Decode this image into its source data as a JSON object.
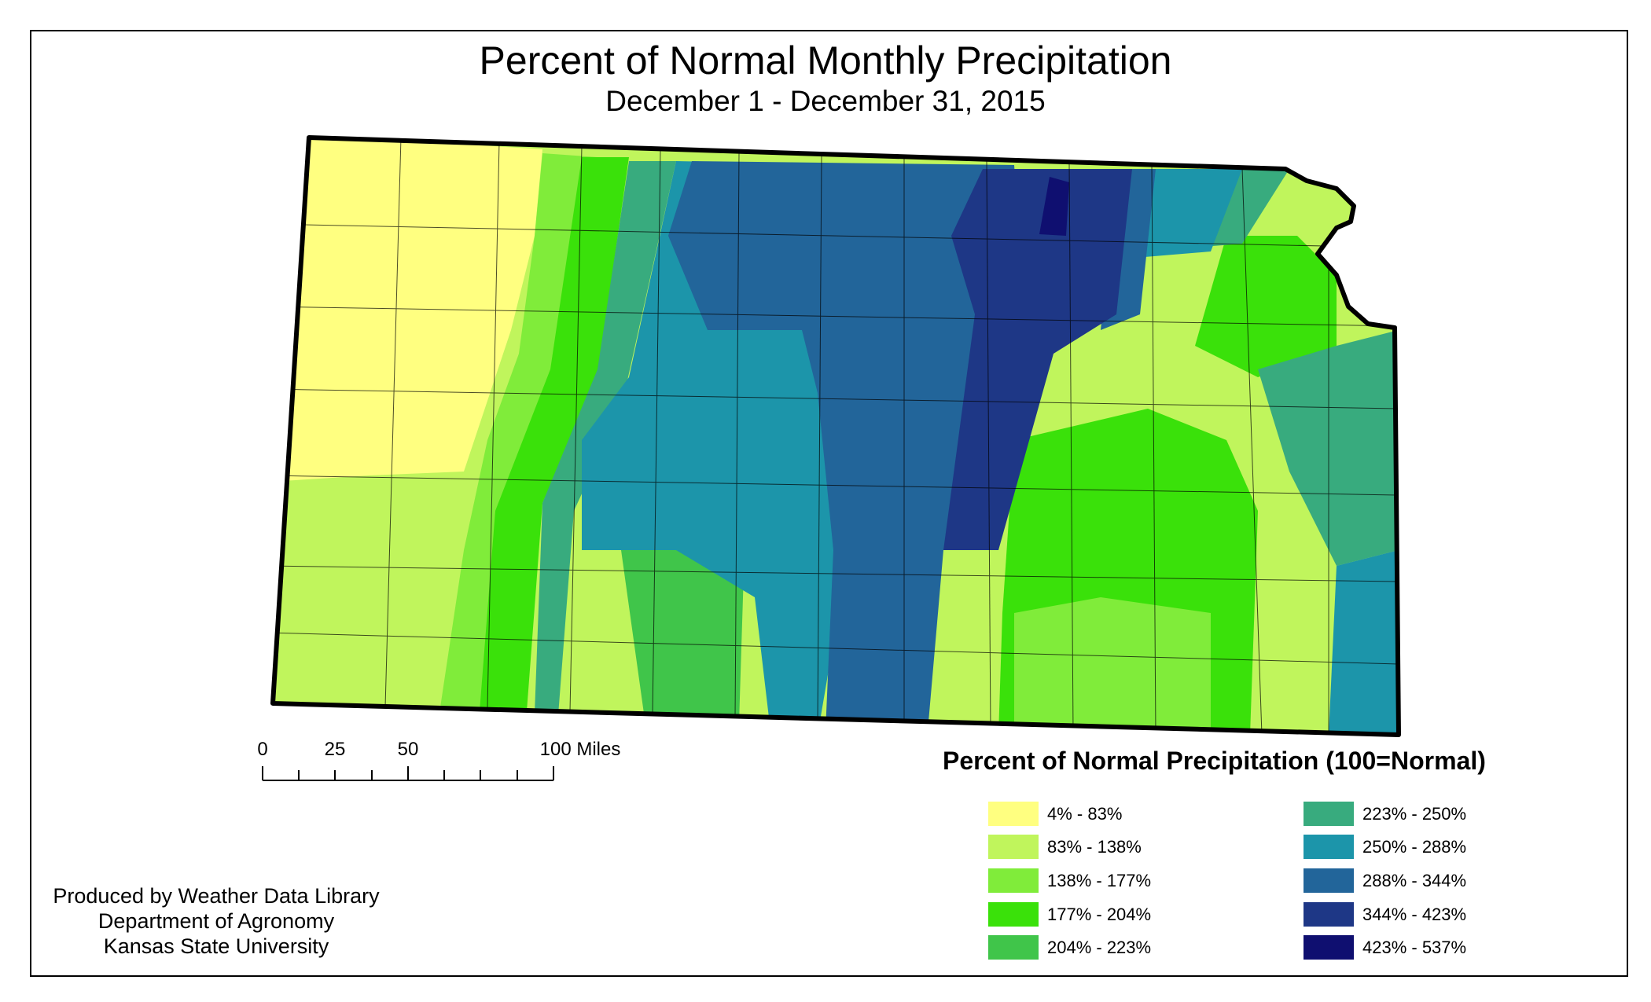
{
  "title": "Percent of Normal Monthly Precipitation",
  "subtitle": "December 1 - December 31, 2015",
  "legend": {
    "title": "Percent of Normal Precipitation (100=Normal)",
    "items": [
      {
        "label": "4% - 83%",
        "color": "#FFFF80"
      },
      {
        "label": "83% - 138%",
        "color": "#C0F55C"
      },
      {
        "label": "138% - 177%",
        "color": "#80EC3A"
      },
      {
        "label": "177% - 204%",
        "color": "#3AE10A"
      },
      {
        "label": "204% - 223%",
        "color": "#40C54A"
      },
      {
        "label": "223% - 250%",
        "color": "#38AB7E"
      },
      {
        "label": "250% - 288%",
        "color": "#1C95AA"
      },
      {
        "label": "288% - 344%",
        "color": "#22659A"
      },
      {
        "label": "344% - 423%",
        "color": "#1E3786"
      },
      {
        "label": "423% - 537%",
        "color": "#0F0F70"
      }
    ]
  },
  "scale_bar": {
    "labels": [
      "0",
      "25",
      "50",
      "100 Miles"
    ],
    "values": [
      0,
      25,
      50,
      100
    ]
  },
  "credits": [
    "Produced by Weather Data Library",
    "Department of Agronomy",
    "Kansas State University"
  ]
}
